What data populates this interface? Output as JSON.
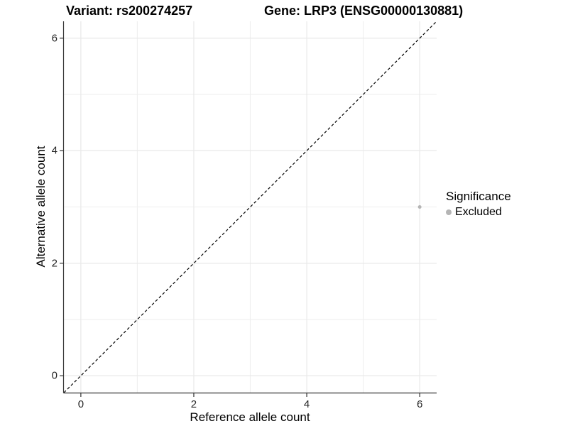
{
  "titles": {
    "variant": "Variant: rs200274257",
    "gene": "Gene: LRP3 (ENSG00000130881)"
  },
  "legend": {
    "title": "Significance",
    "items": [
      {
        "label": "Excluded",
        "marker": "circle-icon",
        "color": "#b5b5b5"
      }
    ]
  },
  "colors": {
    "grid_major": "#e9e9e9",
    "grid_minor": "#efefef",
    "axis_line": "#333333",
    "tick_mark": "#333333",
    "tick_label": "#262626",
    "reference_line": "#000000",
    "point": "#b5b5b5"
  },
  "chart_data": {
    "type": "scatter",
    "title": "Variant: rs200274257    Gene: LRP3 (ENSG00000130881)",
    "xlabel": "Reference allele count",
    "ylabel": "Alternative allele count",
    "xlim": [
      -0.3,
      6.3
    ],
    "ylim": [
      -0.3,
      6.3
    ],
    "x_ticks": [
      0,
      2,
      4,
      6
    ],
    "y_ticks": [
      0,
      2,
      4,
      6
    ],
    "x_minor_gridlines": [
      1,
      3,
      5
    ],
    "y_minor_gridlines": [
      1,
      3,
      5
    ],
    "grid": true,
    "legend_position": "right",
    "series": [
      {
        "name": "Excluded",
        "color": "#b5b5b5",
        "point_radius": 2.5,
        "points": [
          {
            "x": 6,
            "y": 3
          }
        ]
      }
    ],
    "reference_line": {
      "equation": "y = x",
      "style": "dashed",
      "color": "#000000"
    }
  }
}
